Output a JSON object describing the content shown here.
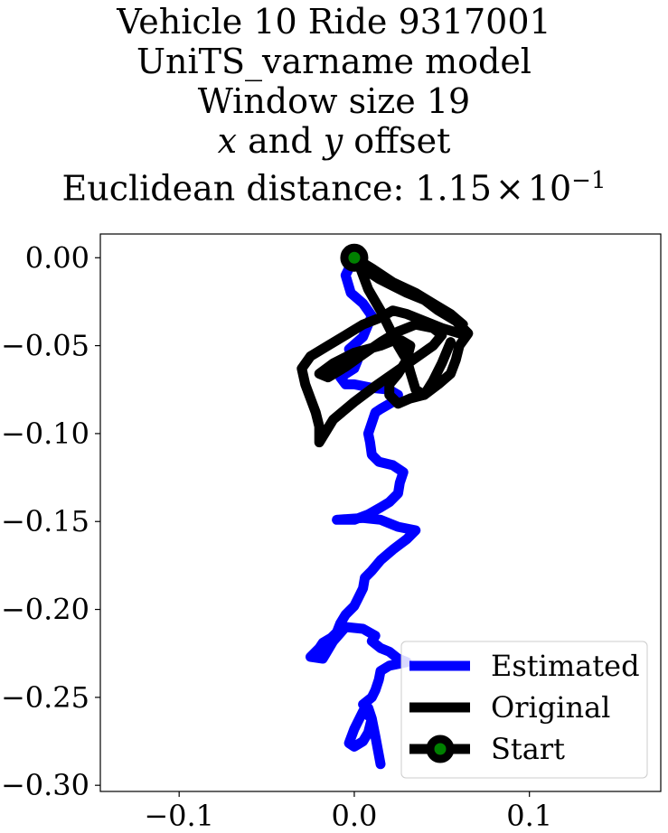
{
  "chart_data": {
    "type": "line",
    "title_lines": [
      "Vehicle 10 Ride 9317001",
      "UniTS_varname model",
      "Window size 19"
    ],
    "title_line4": {
      "x_var": "x",
      "and": " and ",
      "y_var": "y",
      "rest": " offset"
    },
    "title_line5": {
      "prefix": "Euclidean distance: ",
      "mantissa": "1.15",
      "times": "×",
      "base": "10",
      "exponent": "−1"
    },
    "xlim": [
      -0.145,
      0.175
    ],
    "ylim": [
      -0.3035,
      0.0135
    ],
    "x_ticks": [
      {
        "value": -0.1,
        "label": "−0.1"
      },
      {
        "value": 0.0,
        "label": "0.0"
      },
      {
        "value": 0.1,
        "label": "0.1"
      }
    ],
    "y_ticks": [
      {
        "value": 0.0,
        "label": "0.00"
      },
      {
        "value": -0.05,
        "label": "−0.05"
      },
      {
        "value": -0.1,
        "label": "−0.10"
      },
      {
        "value": -0.15,
        "label": "−0.15"
      },
      {
        "value": -0.2,
        "label": "−0.20"
      },
      {
        "value": -0.25,
        "label": "−0.25"
      },
      {
        "value": -0.3,
        "label": "−0.30"
      }
    ],
    "grid": false,
    "legend_position": "lower-right",
    "series": [
      {
        "name": "Estimated",
        "color": "#0000ff",
        "x": [
          0.0,
          -0.005,
          -0.002,
          0.005,
          0.01,
          0.005,
          -0.003,
          0.002,
          0.0,
          -0.008,
          -0.005,
          0.0,
          0.01,
          0.02,
          0.025,
          0.022,
          0.015,
          0.012,
          0.01,
          0.008,
          0.009,
          0.01,
          0.014,
          0.022,
          0.028,
          0.026,
          0.025,
          0.02,
          0.015,
          0.008,
          0.0,
          -0.01,
          0.005,
          0.015,
          0.025,
          0.035,
          0.03,
          0.022,
          0.015,
          0.01,
          0.006,
          0.005,
          0.002,
          0.0,
          -0.005,
          -0.008,
          -0.01,
          -0.013,
          -0.018,
          -0.02,
          -0.025,
          -0.018,
          -0.012,
          -0.005,
          0.005,
          0.012,
          0.01,
          0.015,
          0.02,
          0.025,
          0.03,
          0.02,
          0.015,
          0.014,
          0.012,
          0.01,
          0.005,
          0.008,
          0.01,
          0.008,
          0.005,
          0.0,
          -0.003,
          0.0,
          0.005,
          0.01,
          0.012,
          0.015
        ],
        "y": [
          0.0,
          -0.01,
          -0.02,
          -0.026,
          -0.033,
          -0.045,
          -0.052,
          -0.058,
          -0.063,
          -0.068,
          -0.072,
          -0.072,
          -0.074,
          -0.075,
          -0.078,
          -0.082,
          -0.086,
          -0.088,
          -0.094,
          -0.1,
          -0.105,
          -0.112,
          -0.116,
          -0.118,
          -0.122,
          -0.128,
          -0.134,
          -0.139,
          -0.142,
          -0.146,
          -0.149,
          -0.149,
          -0.148,
          -0.149,
          -0.153,
          -0.155,
          -0.16,
          -0.166,
          -0.172,
          -0.178,
          -0.182,
          -0.188,
          -0.194,
          -0.198,
          -0.203,
          -0.208,
          -0.213,
          -0.216,
          -0.219,
          -0.222,
          -0.227,
          -0.228,
          -0.218,
          -0.21,
          -0.211,
          -0.215,
          -0.218,
          -0.222,
          -0.224,
          -0.228,
          -0.23,
          -0.232,
          -0.235,
          -0.24,
          -0.246,
          -0.25,
          -0.254,
          -0.256,
          -0.262,
          -0.27,
          -0.275,
          -0.278,
          -0.276,
          -0.268,
          -0.258,
          -0.262,
          -0.272,
          -0.288
        ]
      },
      {
        "name": "Original",
        "color": "#000000",
        "x": [
          0.0,
          0.01,
          0.022,
          0.035,
          0.045,
          0.055,
          0.062,
          0.06,
          0.05,
          0.04,
          0.03,
          0.022,
          0.015,
          0.005,
          -0.005,
          -0.015,
          -0.025,
          -0.03,
          -0.028,
          -0.025,
          -0.022,
          -0.02,
          -0.02,
          -0.012,
          0.0,
          0.012,
          0.025,
          0.035,
          0.045,
          0.05,
          0.045,
          0.035,
          0.025,
          0.015,
          0.005,
          -0.005,
          -0.015,
          -0.02,
          -0.012,
          0.0,
          0.015,
          0.025,
          0.032,
          0.03,
          0.025,
          0.02,
          0.02,
          0.025,
          0.032,
          0.04,
          0.048,
          0.055,
          0.058,
          0.06,
          0.065,
          0.058,
          0.048,
          0.04,
          0.03,
          0.022,
          0.014,
          0.008,
          0.003,
          0.002,
          0.008,
          0.015,
          0.02,
          0.025,
          0.028,
          0.03,
          0.032,
          0.035,
          0.04,
          0.045,
          0.05,
          0.055
        ],
        "y": [
          0.0,
          -0.006,
          -0.014,
          -0.02,
          -0.026,
          -0.032,
          -0.038,
          -0.043,
          -0.04,
          -0.036,
          -0.032,
          -0.03,
          -0.034,
          -0.038,
          -0.044,
          -0.05,
          -0.056,
          -0.063,
          -0.072,
          -0.08,
          -0.088,
          -0.096,
          -0.105,
          -0.092,
          -0.082,
          -0.073,
          -0.064,
          -0.057,
          -0.05,
          -0.044,
          -0.04,
          -0.038,
          -0.042,
          -0.048,
          -0.055,
          -0.062,
          -0.068,
          -0.066,
          -0.06,
          -0.054,
          -0.05,
          -0.046,
          -0.05,
          -0.058,
          -0.066,
          -0.072,
          -0.078,
          -0.083,
          -0.08,
          -0.078,
          -0.072,
          -0.066,
          -0.058,
          -0.05,
          -0.043,
          -0.036,
          -0.03,
          -0.024,
          -0.02,
          -0.016,
          -0.012,
          -0.008,
          -0.004,
          -0.002,
          -0.018,
          -0.03,
          -0.04,
          -0.05,
          -0.055,
          -0.058,
          -0.065,
          -0.075,
          -0.078,
          -0.07,
          -0.06,
          -0.048
        ]
      }
    ],
    "start_marker": {
      "name": "Start",
      "x": 0.0,
      "y": 0.0,
      "edge_color": "#000000",
      "fill_color": "#008000"
    }
  }
}
